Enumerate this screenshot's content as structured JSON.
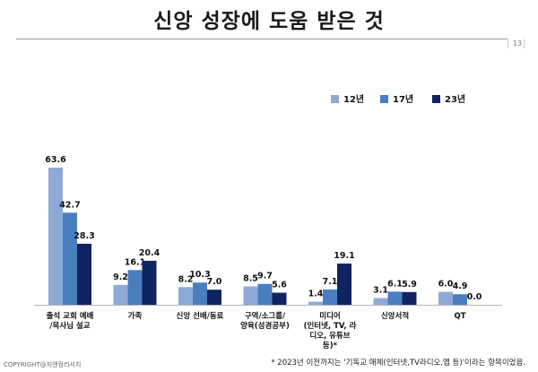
{
  "page": {
    "title": "신앙 성장에 도움 받은 것",
    "page_number": "13",
    "footnote": "* 2023년 이전까지는 '기독교 매체(인터넷,TV라디오,앱 등)'이라는 항목이었음.",
    "copyright": "COPYRIGHT@지앤컴리서치"
  },
  "chart_data": {
    "type": "bar",
    "title": "신앙 성장에 도움 받은 것",
    "xlabel": "",
    "ylabel": "",
    "ylim": [
      0,
      70
    ],
    "grid": false,
    "legend_position": "top-right",
    "categories": [
      [
        "출석 교회 예배",
        "/목사님 설교"
      ],
      [
        "가족"
      ],
      [
        "신앙 선배/동료"
      ],
      [
        "구역/소그룹/",
        "양육(성경공부)"
      ],
      [
        "미디어",
        "(인터넷, TV, 라",
        "디오, 유튜브",
        "등)*"
      ],
      [
        "신앙서적"
      ],
      [
        "QT"
      ]
    ],
    "series": [
      {
        "name": "12년",
        "color": "#8EA9D6",
        "values": [
          63.6,
          9.2,
          8.2,
          8.5,
          1.4,
          3.1,
          6.0
        ]
      },
      {
        "name": "17년",
        "color": "#4A7EC0",
        "values": [
          42.7,
          16.1,
          10.3,
          9.7,
          7.1,
          6.1,
          4.9
        ]
      },
      {
        "name": "23년",
        "color": "#0F2461",
        "values": [
          28.3,
          20.4,
          7.0,
          5.6,
          19.1,
          5.9,
          0.0
        ]
      }
    ],
    "value_labels": [
      [
        "63.6",
        "9.2",
        "8.2",
        "8.5",
        "1.4",
        "3.1",
        "6.0"
      ],
      [
        "42.7",
        "16.1",
        "10.3",
        "9.7",
        "7.1",
        "6.1",
        "4.9"
      ],
      [
        "28.3",
        "20.4",
        "7.0",
        "5.6",
        "19.1",
        "5.9",
        "0.0"
      ]
    ]
  }
}
